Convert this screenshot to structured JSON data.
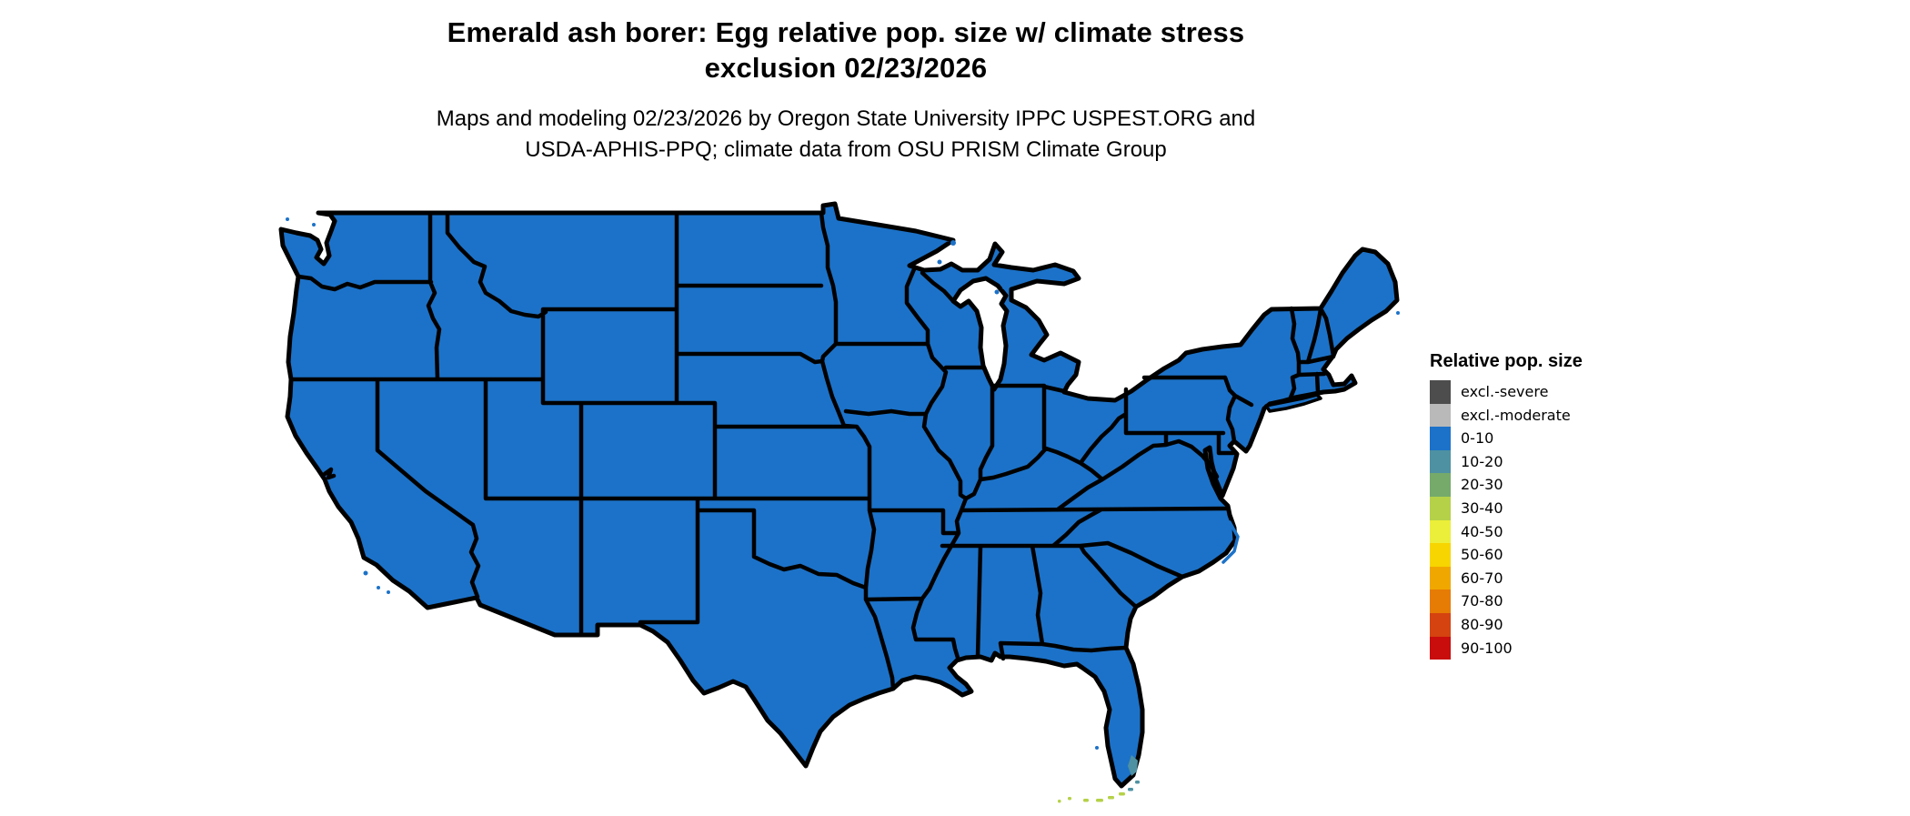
{
  "title": {
    "line1": "Emerald ash borer: Egg relative pop. size w/ climate stress",
    "line2": "exclusion 02/23/2026"
  },
  "subtitle": {
    "line1": "Maps and modeling 02/23/2026 by Oregon State University IPPC USPEST.ORG and",
    "line2": "USDA-APHIS-PPQ; climate data from OSU PRISM Climate Group"
  },
  "legend": {
    "title": "Relative pop. size",
    "items": [
      {
        "label": "excl.-severe",
        "color": "#4d4d4d"
      },
      {
        "label": "excl.-moderate",
        "color": "#b9b9b9"
      },
      {
        "label": "0-10",
        "color": "#1c72c8"
      },
      {
        "label": "10-20",
        "color": "#4e91a2"
      },
      {
        "label": "20-30",
        "color": "#75aa6b"
      },
      {
        "label": "30-40",
        "color": "#b5d148"
      },
      {
        "label": "40-50",
        "color": "#ecef39"
      },
      {
        "label": "50-60",
        "color": "#f7d500"
      },
      {
        "label": "60-70",
        "color": "#f0a800"
      },
      {
        "label": "70-80",
        "color": "#e67c04"
      },
      {
        "label": "80-90",
        "color": "#d54310"
      },
      {
        "label": "90-100",
        "color": "#c90d0d"
      }
    ]
  },
  "map": {
    "region": "Continental United States",
    "date_shown": "02/23/2026",
    "dominant_category": "0-10",
    "fill_color": "#1c72c8",
    "border_color": "#000000",
    "background_color": "#ffffff",
    "detail_regions": [
      {
        "area": "South Florida coastal strip",
        "category": "10-20",
        "color": "#4e91a2"
      },
      {
        "area": "Florida Keys",
        "category": "30-40",
        "color": "#b5d148"
      }
    ]
  }
}
